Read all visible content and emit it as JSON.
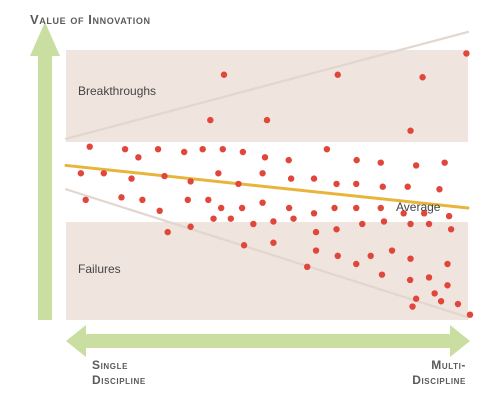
{
  "chart_data": {
    "type": "scatter",
    "title": "Value of Innovation",
    "y_axis_label": "Value of Innovation",
    "x_axis_labels": {
      "left_line1": "Single",
      "left_line2": "Discipline",
      "right_line1": "Multi-",
      "right_line2": "Discipline"
    },
    "bands": {
      "top": "Breakthroughs",
      "bottom": "Failures"
    },
    "average_label": "Average",
    "colors": {
      "band": "#efe4de",
      "axis_arrow": "#c9dea0",
      "average_line": "#e8b53b",
      "dot": "#e0463a",
      "boundary": "#e2d6cf"
    },
    "xlim": [
      0,
      100
    ],
    "ylim": [
      0,
      100
    ],
    "average_line": {
      "x0": 0,
      "y0": 55.2,
      "x1": 100,
      "y1": 40.0
    },
    "upper_boundary": {
      "x0": 0,
      "y0": 64.7,
      "x1": 100,
      "y1": 102.9
    },
    "lower_boundary": {
      "x0": 0,
      "y0": 46.7,
      "x1": 100,
      "y1": 0.95
    },
    "points": [
      [
        39.3,
        87.6
      ],
      [
        67.6,
        87.6
      ],
      [
        88.7,
        86.7
      ],
      [
        99.6,
        95.2
      ],
      [
        35.9,
        71.4
      ],
      [
        50.0,
        71.4
      ],
      [
        85.7,
        67.6
      ],
      [
        5.9,
        61.9
      ],
      [
        14.7,
        61.0
      ],
      [
        18.0,
        58.1
      ],
      [
        22.9,
        61.0
      ],
      [
        29.4,
        60.0
      ],
      [
        34.0,
        61.0
      ],
      [
        39.0,
        61.0
      ],
      [
        44.0,
        60.0
      ],
      [
        49.5,
        58.1
      ],
      [
        55.4,
        57.1
      ],
      [
        64.9,
        61.0
      ],
      [
        72.3,
        57.1
      ],
      [
        78.3,
        56.2
      ],
      [
        87.1,
        55.2
      ],
      [
        94.2,
        56.2
      ],
      [
        3.7,
        52.4
      ],
      [
        9.4,
        52.4
      ],
      [
        16.3,
        50.5
      ],
      [
        24.5,
        51.4
      ],
      [
        31.0,
        49.5
      ],
      [
        37.9,
        52.4
      ],
      [
        42.9,
        48.6
      ],
      [
        48.9,
        52.4
      ],
      [
        56.0,
        50.5
      ],
      [
        61.7,
        50.5
      ],
      [
        67.3,
        48.6
      ],
      [
        72.2,
        48.6
      ],
      [
        78.8,
        47.6
      ],
      [
        85.0,
        47.6
      ],
      [
        92.9,
        46.7
      ],
      [
        4.9,
        42.9
      ],
      [
        13.8,
        43.8
      ],
      [
        19.0,
        42.9
      ],
      [
        23.3,
        39.0
      ],
      [
        30.3,
        42.9
      ],
      [
        35.4,
        42.9
      ],
      [
        38.6,
        40.0
      ],
      [
        43.8,
        40.0
      ],
      [
        48.9,
        41.9
      ],
      [
        55.5,
        40.0
      ],
      [
        61.7,
        38.1
      ],
      [
        66.8,
        40.0
      ],
      [
        72.2,
        40.0
      ],
      [
        78.3,
        40.0
      ],
      [
        84.0,
        38.1
      ],
      [
        89.1,
        38.1
      ],
      [
        95.3,
        37.1
      ],
      [
        25.3,
        31.4
      ],
      [
        31.0,
        33.3
      ],
      [
        36.7,
        36.2
      ],
      [
        41.0,
        36.2
      ],
      [
        46.6,
        34.3
      ],
      [
        51.6,
        35.2
      ],
      [
        56.6,
        36.2
      ],
      [
        62.2,
        31.4
      ],
      [
        67.3,
        32.4
      ],
      [
        73.7,
        34.3
      ],
      [
        79.1,
        35.2
      ],
      [
        85.7,
        34.3
      ],
      [
        90.3,
        34.3
      ],
      [
        95.8,
        32.4
      ],
      [
        44.3,
        26.7
      ],
      [
        51.6,
        27.6
      ],
      [
        62.2,
        24.8
      ],
      [
        67.6,
        22.9
      ],
      [
        72.2,
        20.0
      ],
      [
        75.8,
        22.9
      ],
      [
        81.1,
        24.8
      ],
      [
        85.7,
        21.9
      ],
      [
        94.9,
        20.0
      ],
      [
        60.0,
        19.0
      ],
      [
        78.6,
        16.2
      ],
      [
        85.6,
        14.3
      ],
      [
        90.3,
        15.2
      ],
      [
        94.9,
        12.4
      ],
      [
        91.7,
        9.5
      ],
      [
        87.1,
        7.6
      ],
      [
        93.3,
        6.7
      ],
      [
        97.5,
        5.7
      ],
      [
        86.2,
        4.8
      ],
      [
        100.5,
        1.9
      ]
    ]
  }
}
